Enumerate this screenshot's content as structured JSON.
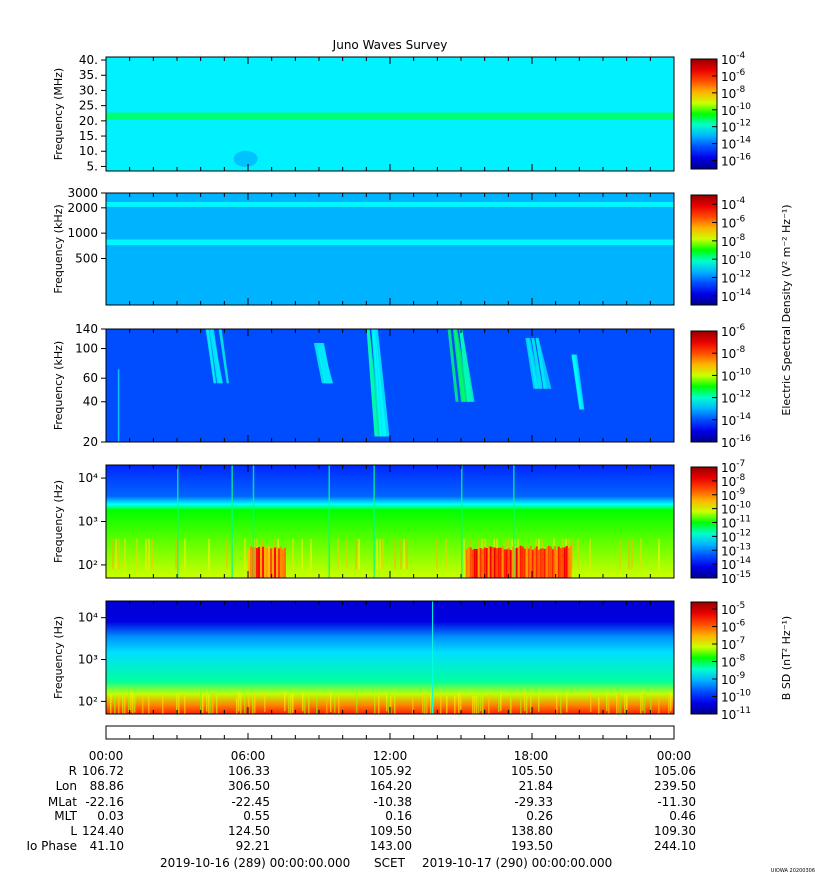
{
  "title": "Juno Waves Survey",
  "footer": {
    "left": "2019-10-16 (289) 00:00:00.000",
    "mid": "SCET",
    "right": "2019-10-17 (290) 00:00:00.000",
    "stamp": "UIOWA 20200306"
  },
  "shared_colorbar_label": "Electric Spectral Density (V² m⁻² Hz⁻¹)",
  "chart_data": [
    {
      "type": "heatmap",
      "panel": "hfr-high",
      "ylabel": "Frequency (MHz)",
      "yscale": "linear",
      "ylim": [
        3.5,
        41
      ],
      "yticks": [
        {
          "v": 40,
          "label": "40."
        },
        {
          "v": 35,
          "label": "35."
        },
        {
          "v": 30,
          "label": "30."
        },
        {
          "v": 25,
          "label": "25."
        },
        {
          "v": 20,
          "label": "20."
        },
        {
          "v": 15,
          "label": "15."
        },
        {
          "v": 10,
          "label": "10."
        },
        {
          "v": 5,
          "label": "5."
        }
      ],
      "colorbar": {
        "scale": "log",
        "range_exp": [
          -17,
          -4
        ],
        "ticks_exp": [
          -4,
          -6,
          -8,
          -10,
          -12,
          -14,
          -16
        ]
      },
      "background_level_exp": -12.3,
      "bands": [
        {
          "y": 21.5,
          "level_exp": -11.2,
          "halfwidth": 1.2
        }
      ],
      "features": [
        {
          "x": 5.9,
          "y": 7.5,
          "level_exp": -13.3
        }
      ]
    },
    {
      "type": "heatmap",
      "panel": "hfr-low",
      "ylabel": "Frequency (kHz)",
      "yscale": "log",
      "ylim": [
        140,
        3000
      ],
      "yticks": [
        {
          "v": 3000,
          "label": "3000"
        },
        {
          "v": 2000,
          "label": "2000"
        },
        {
          "v": 1000,
          "label": "1000"
        },
        {
          "v": 500,
          "label": "500"
        }
      ],
      "colorbar": {
        "scale": "log",
        "range_exp": [
          -15,
          -3
        ],
        "ticks_exp": [
          -4,
          -6,
          -8,
          -10,
          -12,
          -14
        ],
        "label": "Electric Spectral Density (V² m⁻² Hz⁻¹)"
      },
      "background_level_exp": -11.4,
      "bands": [
        {
          "y": 2200,
          "level_exp": -10.6,
          "halfwidth": 150
        },
        {
          "y": 780,
          "level_exp": -10.6,
          "halfwidth": 60
        }
      ]
    },
    {
      "type": "heatmap",
      "panel": "lfr-high",
      "ylabel": "Frequency (kHz)",
      "yscale": "log",
      "ylim": [
        20,
        140
      ],
      "yticks": [
        {
          "v": 140,
          "label": "140"
        },
        {
          "v": 100,
          "label": "100"
        },
        {
          "v": 60,
          "label": "60"
        },
        {
          "v": 40,
          "label": "40"
        },
        {
          "v": 20,
          "label": "20"
        }
      ],
      "colorbar": {
        "scale": "log",
        "range_exp": [
          -16,
          -6
        ],
        "ticks_exp": [
          -6,
          -8,
          -10,
          -12,
          -14,
          -16
        ]
      },
      "background_level_exp": -14.0,
      "bursts": [
        {
          "t": 4.5,
          "ytop": 140,
          "ybot": 55,
          "level_exp": -12.6
        },
        {
          "t": 9.0,
          "ytop": 110,
          "ybot": 55,
          "level_exp": -12.6
        },
        {
          "t": 11.3,
          "ytop": 140,
          "ybot": 22,
          "level_exp": -12.3
        },
        {
          "t": 14.7,
          "ytop": 140,
          "ybot": 40,
          "level_exp": -12.0
        },
        {
          "t": 18.0,
          "ytop": 120,
          "ybot": 50,
          "level_exp": -12.6
        },
        {
          "t": 19.7,
          "ytop": 90,
          "ybot": 35,
          "level_exp": -12.6
        }
      ]
    },
    {
      "type": "heatmap",
      "panel": "lfr-low",
      "ylabel": "Frequency (Hz)",
      "yscale": "log",
      "ylim": [
        50,
        20000
      ],
      "yticks": [
        {
          "v": 10000,
          "label": "10⁴"
        },
        {
          "v": 1000,
          "label": "10³"
        },
        {
          "v": 100,
          "label": "10²"
        }
      ],
      "colorbar": {
        "scale": "log",
        "range_exp": [
          -15,
          -7
        ],
        "ticks_exp": [
          -7,
          -8,
          -9,
          -10,
          -11,
          -12,
          -13,
          -14,
          -15
        ]
      },
      "cutoff_hz": 2500,
      "hot_intervals": [
        {
          "t0": 6.0,
          "t1": 7.6,
          "level_exp": -8.0
        },
        {
          "t0": 15.2,
          "t1": 19.6,
          "level_exp": -7.7
        }
      ]
    },
    {
      "type": "heatmap",
      "panel": "bsd",
      "ylabel": "Frequency (Hz)",
      "yscale": "log",
      "ylim": [
        50,
        25000
      ],
      "yticks": [
        {
          "v": 10000,
          "label": "10⁴"
        },
        {
          "v": 1000,
          "label": "10³"
        },
        {
          "v": 100,
          "label": "10²"
        }
      ],
      "colorbar": {
        "scale": "log",
        "range_exp": [
          -11,
          -4.6
        ],
        "ticks_exp": [
          -5,
          -6,
          -7,
          -8,
          -9,
          -10,
          -11
        ],
        "label": "B SD (nT² Hz⁻¹)"
      },
      "marker_time": 13.8
    }
  ],
  "ephemeris": {
    "labels": [
      "R",
      "Lon",
      "MLat",
      "MLT",
      "L",
      "Io Phase"
    ],
    "times": [
      "00:00",
      "06:00",
      "12:00",
      "18:00",
      "00:00"
    ],
    "rows": [
      [
        "106.72",
        "106.33",
        "105.92",
        "105.50",
        "105.06"
      ],
      [
        "88.86",
        "306.50",
        "164.20",
        "21.84",
        "239.50"
      ],
      [
        "-22.16",
        "-22.45",
        "-10.38",
        "-29.33",
        "-11.30"
      ],
      [
        "0.03",
        "0.55",
        "0.16",
        "0.26",
        "0.46"
      ],
      [
        "124.40",
        "124.50",
        "109.50",
        "138.80",
        "109.30"
      ],
      [
        "41.10",
        "92.21",
        "143.00",
        "193.50",
        "244.10"
      ]
    ]
  }
}
